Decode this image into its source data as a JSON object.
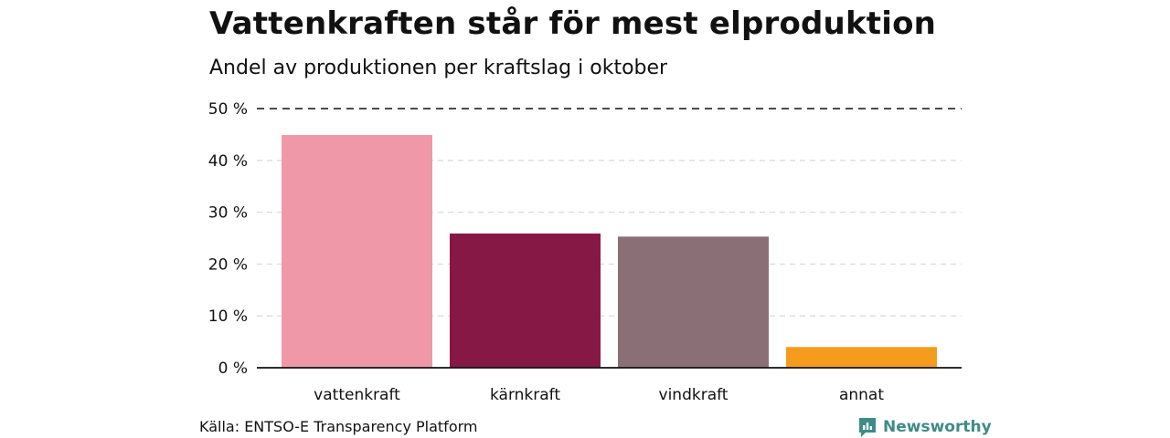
{
  "header": {
    "title": "Vattenkraften står för mest elproduktion",
    "subtitle": "Andel av produktionen per kraftslag i oktober"
  },
  "footer": {
    "source": "Källa: ENTSO-E Transparency Platform",
    "brand": "Newsworthy",
    "brand_color": "#3d8c88"
  },
  "chart_data": {
    "type": "bar",
    "categories": [
      "vattenkraft",
      "kärnkraft",
      "vindkraft",
      "annat"
    ],
    "values": [
      44.9,
      25.9,
      25.3,
      4.0
    ],
    "colors": [
      "#ef99a8",
      "#861846",
      "#8b6f76",
      "#f59c1d"
    ],
    "ylim": [
      0,
      50
    ],
    "yticks": [
      0,
      10,
      20,
      30,
      40,
      50
    ],
    "ytick_labels": [
      "0 %",
      "10 %",
      "20 %",
      "30 %",
      "40 %",
      "50 %"
    ],
    "grid": true,
    "xlabel": "",
    "ylabel": ""
  }
}
